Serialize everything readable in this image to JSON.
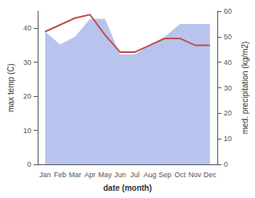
{
  "chart_data": {
    "type": "line",
    "categories": [
      "Jan",
      "Feb",
      "Mar",
      "Apr",
      "May",
      "Jun",
      "Jul",
      "Aug",
      "Sep",
      "Oct",
      "Nov",
      "Dec"
    ],
    "xlabel": "date (month)",
    "ylabel": "max temp (C)",
    "y2label": "med. precipitation (kg/m2)",
    "series": [
      {
        "type": "area",
        "axis": "y2",
        "color": "#b8c4ee",
        "values": [
          52,
          47,
          50,
          57,
          57,
          43,
          43,
          47,
          50,
          55,
          55,
          55
        ]
      },
      {
        "type": "line",
        "color": "#c0504d",
        "values": [
          39,
          41,
          43,
          44,
          38,
          33,
          33,
          35,
          37,
          37,
          35,
          35
        ]
      }
    ],
    "ylim": [
      0,
      45
    ],
    "yticks": [
      0,
      10,
      20,
      30,
      40
    ],
    "y2lim": [
      0,
      60
    ],
    "y2ticks": [
      0,
      10,
      20,
      30,
      40,
      50,
      60
    ],
    "grid": false
  }
}
